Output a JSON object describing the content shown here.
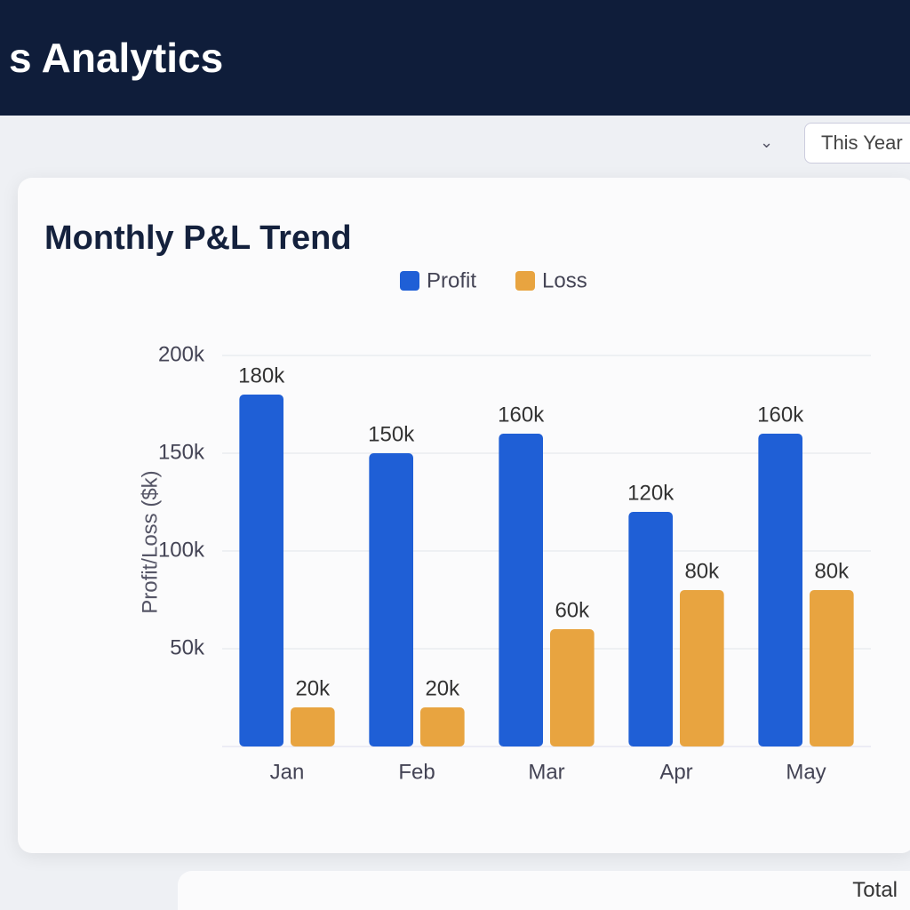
{
  "header": {
    "title": "s Analytics"
  },
  "filter": {
    "label": "This Year"
  },
  "side_card": {
    "label": "Total"
  },
  "chart_data": {
    "type": "bar",
    "title": "Monthly P&L Trend",
    "y_label": "Profit/Loss ($k)",
    "categories": [
      "Jan",
      "Feb",
      "Mar",
      "Apr",
      "May"
    ],
    "series": [
      {
        "name": "Profit",
        "color": "#1f5fd6",
        "values": [
          180,
          150,
          160,
          120,
          160
        ],
        "value_labels": [
          "180k",
          "150k",
          "160k",
          "120k",
          "160k"
        ]
      },
      {
        "name": "Loss",
        "color": "#e8a440",
        "values": [
          20,
          20,
          60,
          80,
          80
        ],
        "value_labels": [
          "20k",
          "20k",
          "60k",
          "80k",
          "80k"
        ]
      }
    ],
    "ylim": [
      0,
      200
    ],
    "yticks": [
      {
        "value": 50,
        "label": "50k"
      },
      {
        "value": 100,
        "label": "100k"
      },
      {
        "value": 150,
        "label": "150k"
      },
      {
        "value": 200,
        "label": "200k"
      }
    ],
    "grid": true
  }
}
